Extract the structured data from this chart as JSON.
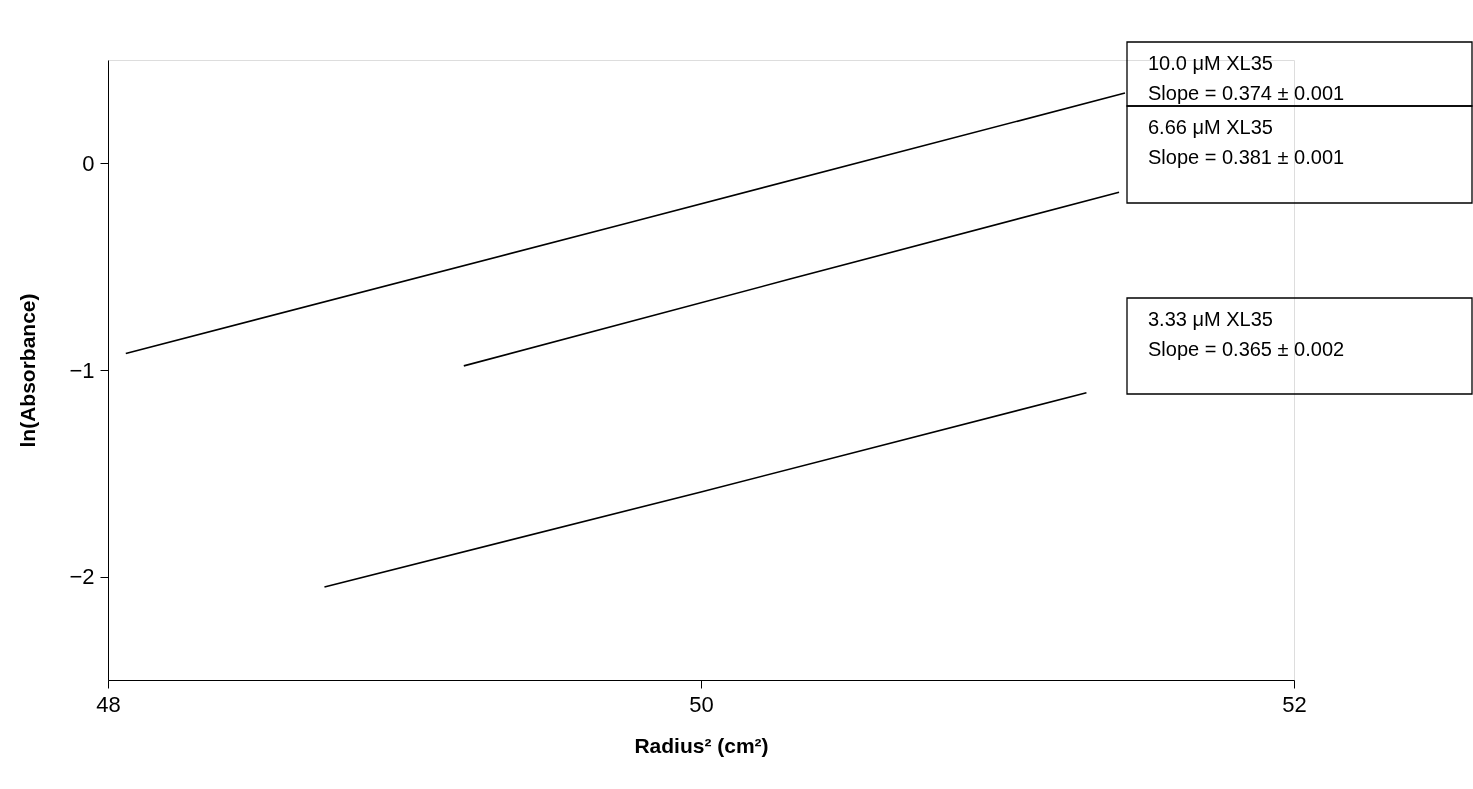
{
  "chart_data": {
    "type": "line",
    "xlabel": "Radius² (cm²)",
    "ylabel": "ln(Absorbance)",
    "xlim": [
      48,
      52
    ],
    "ylim": [
      -2.5,
      0.5
    ],
    "xticks": [
      48,
      50,
      52
    ],
    "yticks": [
      -2,
      -1,
      0
    ],
    "grid": false,
    "series": [
      {
        "color": "#000000",
        "line_style": "solid",
        "x": [
          48.06,
          49.75,
          51.43
        ],
        "values": [
          -0.92,
          -0.29,
          0.34
        ]
      },
      {
        "color": "#000000",
        "line_style": "solid",
        "x": [
          49.2,
          50.3,
          51.41
        ],
        "values": [
          -0.98,
          -0.56,
          -0.14
        ]
      },
      {
        "color": "#000000",
        "line_style": "solid",
        "x": [
          48.73,
          50.0,
          51.3
        ],
        "values": [
          -2.05,
          -1.59,
          -1.11
        ]
      }
    ],
    "annotations": [
      "10.0 μM XL35\nSlope = 0.374 ± 0.001",
      "6.66 μM XL35\nSlope = 0.381 ± 0.001",
      "3.33 μM XL35\nSlope = 0.365 ± 0.002"
    ]
  }
}
